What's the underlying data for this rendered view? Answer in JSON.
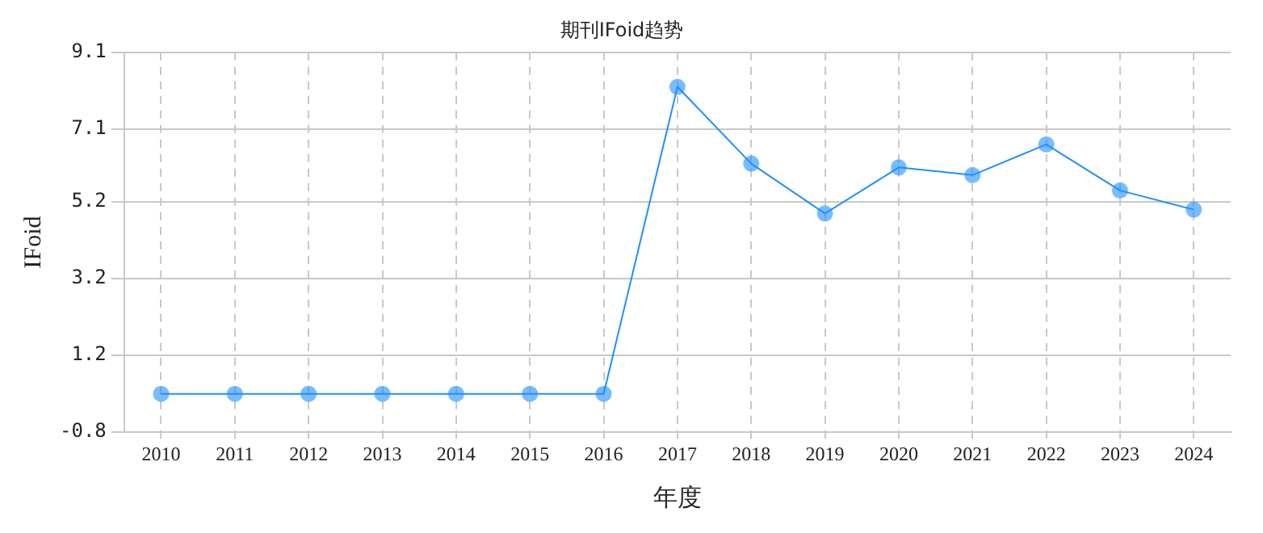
{
  "chart_data": {
    "type": "line",
    "title": "期刊IFoid趋势",
    "xlabel": "年度",
    "ylabel": "IFoid",
    "categories": [
      "2010",
      "2011",
      "2012",
      "2013",
      "2014",
      "2015",
      "2016",
      "2017",
      "2018",
      "2019",
      "2020",
      "2021",
      "2022",
      "2023",
      "2024"
    ],
    "series": [
      {
        "color": "#1e90ff",
        "values": [
          0.2,
          0.2,
          0.2,
          0.2,
          0.2,
          0.2,
          0.2,
          8.2,
          6.2,
          4.9,
          6.1,
          5.9,
          6.7,
          5.5,
          5.0
        ]
      }
    ],
    "ylim": [
      -0.8,
      9.1
    ],
    "yticks": [
      -0.8,
      1.2,
      3.2,
      5.2,
      7.1,
      9.1
    ],
    "grid": true,
    "marker": "circle",
    "line_style": "solid",
    "legend": false
  }
}
